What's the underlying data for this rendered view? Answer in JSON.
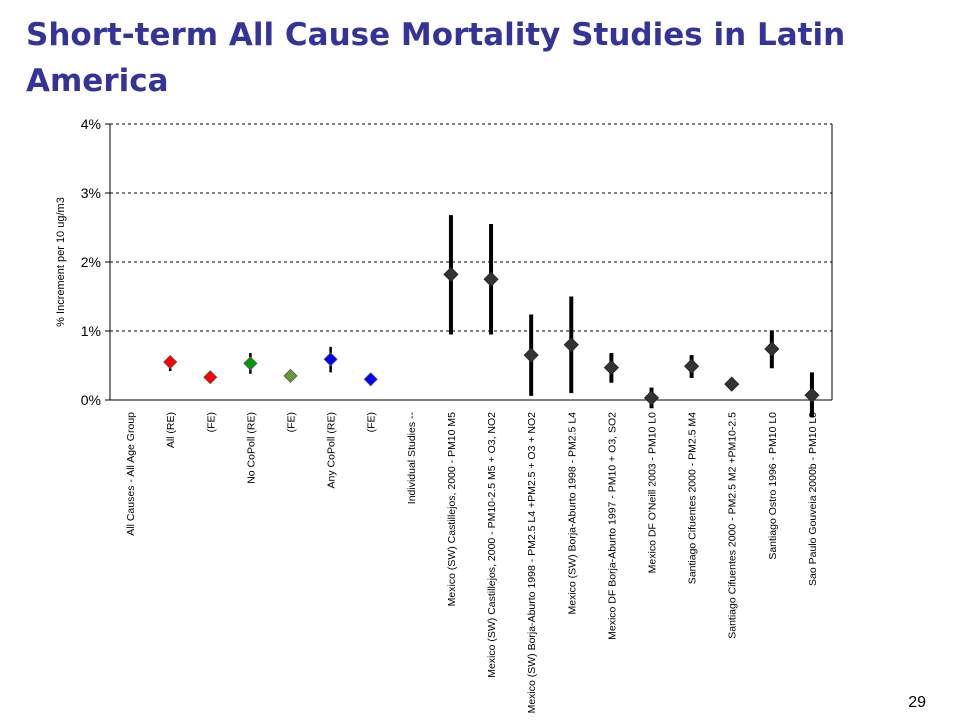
{
  "slide": {
    "title": "Short-term All Cause Mortality Studies in Latin America",
    "page_number": "29"
  },
  "chart_data": {
    "type": "scatter",
    "subtype": "point-estimate with confidence interval",
    "ylabel": "% Increment per 10 ug/m3",
    "ylim": [
      0,
      4
    ],
    "y_ticks": [
      "0%",
      "1%",
      "2%",
      "3%",
      "4%"
    ],
    "y_tick_values": [
      0,
      1,
      2,
      3,
      4
    ],
    "grid": "dashed horizontal",
    "categories": [
      "All  Causes - All Age Group",
      "All (RE)",
      "(FE)",
      "No CoPoll (RE)",
      "(FE)",
      "Any CoPoll (RE)",
      "(FE)",
      "Individual Studies --",
      "Mexico (SW)  Castillejos, 2000 - PM10 M5",
      "Mexico (SW)  Castillejos, 2000 - PM10-2.5 M5 + O3, NO2",
      "Mexico (SW)  Borja-Aburto 1998 - PM2.5 L4 +PM2.5 + O3 + NO2",
      "Mexico (SW)  Borja-Aburto 1998 - PM2.5 L4",
      "Mexico DF  Borja-Aburto 1997 - PM10  + O3, SO2",
      "Mexico DF  O'Neill 2003 - PM10 L0",
      "Santiago  Cifuentes 2000 - PM2.5 M4",
      "Santiago  Cifuentes 2000 - PM2.5 M2 +PM10-2.5",
      "Santiago  Ostro 1996 - PM10 L0",
      "Sao Paulo  Gouveia 2000b - PM10 L0"
    ],
    "points": [
      {
        "category_index": 1,
        "estimate": 0.55,
        "lower": 0.42,
        "upper": 0.62,
        "color": "#ff0000",
        "marker": "diamond"
      },
      {
        "category_index": 2,
        "estimate": 0.33,
        "lower": 0.3,
        "upper": 0.36,
        "color": "#ff0000",
        "marker": "diamond"
      },
      {
        "category_index": 3,
        "estimate": 0.53,
        "lower": 0.38,
        "upper": 0.68,
        "color": "#009900",
        "marker": "diamond"
      },
      {
        "category_index": 4,
        "estimate": 0.35,
        "lower": 0.32,
        "upper": 0.38,
        "color": "#669933",
        "marker": "diamond"
      },
      {
        "category_index": 5,
        "estimate": 0.59,
        "lower": 0.4,
        "upper": 0.77,
        "color": "#0000ff",
        "marker": "diamond"
      },
      {
        "category_index": 6,
        "estimate": 0.3,
        "lower": 0.27,
        "upper": 0.33,
        "color": "#0000ff",
        "marker": "diamond"
      },
      {
        "category_index": 8,
        "estimate": 1.82,
        "lower": 0.95,
        "upper": 2.68,
        "color": "#333333",
        "marker": "diamond"
      },
      {
        "category_index": 9,
        "estimate": 1.75,
        "lower": 0.95,
        "upper": 2.55,
        "color": "#333333",
        "marker": "diamond"
      },
      {
        "category_index": 10,
        "estimate": 0.65,
        "lower": 0.06,
        "upper": 1.24,
        "color": "#333333",
        "marker": "diamond"
      },
      {
        "category_index": 11,
        "estimate": 0.8,
        "lower": 0.1,
        "upper": 1.5,
        "color": "#333333",
        "marker": "diamond"
      },
      {
        "category_index": 12,
        "estimate": 0.47,
        "lower": 0.25,
        "upper": 0.68,
        "color": "#333333",
        "marker": "diamond"
      },
      {
        "category_index": 13,
        "estimate": 0.03,
        "lower": -0.12,
        "upper": 0.18,
        "color": "#333333",
        "marker": "diamond"
      },
      {
        "category_index": 14,
        "estimate": 0.49,
        "lower": 0.32,
        "upper": 0.65,
        "color": "#333333",
        "marker": "diamond"
      },
      {
        "category_index": 15,
        "estimate": 0.23,
        "lower": 0.15,
        "upper": 0.32,
        "color": "#333333",
        "marker": "diamond"
      },
      {
        "category_index": 16,
        "estimate": 0.74,
        "lower": 0.46,
        "upper": 1.01,
        "color": "#333333",
        "marker": "diamond"
      },
      {
        "category_index": 17,
        "estimate": 0.07,
        "lower": -0.25,
        "upper": 0.4,
        "color": "#333333",
        "marker": "diamond"
      }
    ],
    "legend": "none"
  }
}
